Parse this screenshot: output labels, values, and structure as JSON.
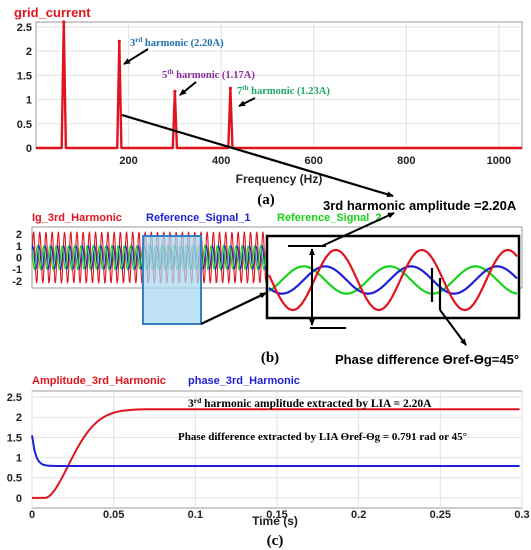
{
  "colors": {
    "red": "#e0141e",
    "blue": "#1f1fd6",
    "green": "#19d219",
    "teal": "#1e6fb0",
    "purple": "#8a2ea0",
    "sea_green": "#1fa86a",
    "panel_bg": "#f3f3f3",
    "highlight": "#a9d8f2"
  },
  "chart_data": [
    {
      "type": "line",
      "panel": "a",
      "title": "grid_current",
      "xlabel": "Frequency (Hz)",
      "caption": "(a)",
      "xlim": [
        0,
        1050
      ],
      "ylim": [
        0,
        2.6
      ],
      "x_ticks": [
        200,
        400,
        600,
        800,
        1000
      ],
      "y_ticks": [
        0,
        0.5,
        1,
        1.5,
        2,
        2.5
      ],
      "series": [
        {
          "name": "grid_current",
          "color": "#e0141e",
          "peaks": [
            {
              "x": 60,
              "y": 2.6
            },
            {
              "x": 180,
              "y": 2.2
            },
            {
              "x": 300,
              "y": 1.17
            },
            {
              "x": 420,
              "y": 1.23
            }
          ]
        }
      ],
      "annotations": [
        {
          "sup_base": "3",
          "sup": "rd",
          "text": " harmonic (2.20A)",
          "color": "#1e6fb0"
        },
        {
          "sup_base": "5",
          "sup": "th",
          "text": " harmonic (1.17A)",
          "color": "#8a2ea0"
        },
        {
          "sup_base": "7",
          "sup": "th",
          "text": " harmonic (1.23A)",
          "color": "#1fa86a"
        }
      ],
      "callout": "3rd harmonic amplitude =2.20A"
    },
    {
      "type": "line",
      "panel": "b",
      "caption": "(b)",
      "ylim": [
        -2.6,
        2.6
      ],
      "y_ticks": [
        -2,
        -1,
        0,
        1,
        2
      ],
      "series": [
        {
          "name": "Ig_3rd_Harmonic",
          "amplitude": 2.2,
          "phase_deg": 0,
          "color": "#e0141e"
        },
        {
          "name": "Reference_Signal_1",
          "amplitude": 1.0,
          "phase_deg": 45,
          "color": "#1f1fd6"
        },
        {
          "name": "Reference_Signal_2",
          "amplitude": 1.0,
          "phase_deg": 135,
          "color": "#19d219"
        }
      ],
      "callout": "Phase difference ϴref-ϴg=45°"
    },
    {
      "type": "line",
      "panel": "c",
      "xlabel": "Time (s)",
      "caption": "(c)",
      "xlim": [
        0,
        0.3
      ],
      "ylim": [
        -0.25,
        2.65
      ],
      "x_ticks": [
        0,
        0.05,
        0.1,
        0.15,
        0.2,
        0.25,
        0.3
      ],
      "y_ticks": [
        0,
        0.5,
        1,
        1.5,
        2,
        2.5
      ],
      "series": [
        {
          "name": "Amplitude_3rd_Harmonic",
          "color": "#e0141e",
          "final_value": 2.2
        },
        {
          "name": "phase_3rd_Harmonic",
          "color": "#1f1fd6",
          "final_value": 0.791
        }
      ],
      "annotations": [
        {
          "sup_base": "3",
          "sup": "rd",
          "text": " harmonic amplitude extracted by LIA = 2.20A"
        },
        {
          "text": "Phase difference extracted by LIA ϴref-ϴg = 0.791 rad or 45°"
        }
      ]
    }
  ]
}
